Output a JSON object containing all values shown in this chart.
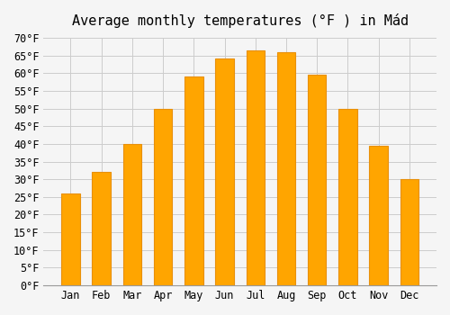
{
  "title": "Average monthly temperatures (°F ) in Mád",
  "months": [
    "Jan",
    "Feb",
    "Mar",
    "Apr",
    "May",
    "Jun",
    "Jul",
    "Aug",
    "Sep",
    "Oct",
    "Nov",
    "Dec"
  ],
  "values": [
    26,
    32,
    40,
    50,
    59,
    64,
    66.5,
    66,
    59.5,
    50,
    39.5,
    30
  ],
  "bar_color": "#FFA500",
  "bar_edge_color": "#E8900A",
  "ylim": [
    0,
    70
  ],
  "yticks": [
    0,
    5,
    10,
    15,
    20,
    25,
    30,
    35,
    40,
    45,
    50,
    55,
    60,
    65,
    70
  ],
  "background_color": "#f5f5f5",
  "grid_color": "#cccccc",
  "title_fontsize": 11,
  "tick_fontsize": 8.5
}
